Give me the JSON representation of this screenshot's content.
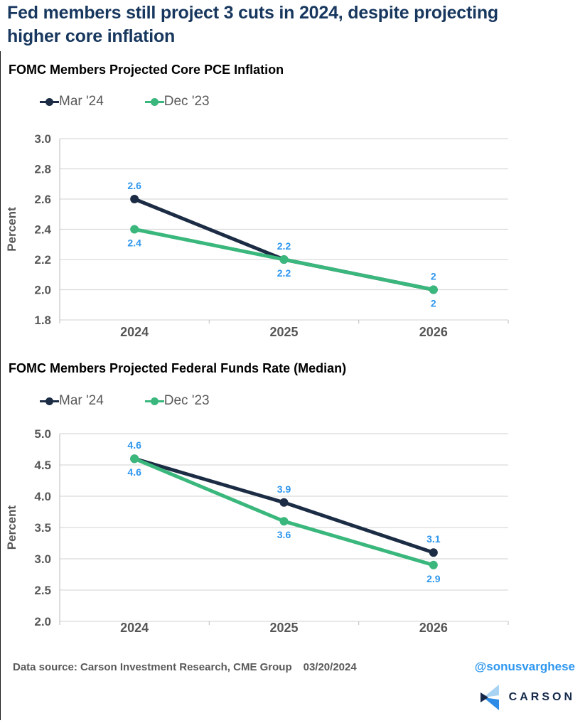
{
  "page": {
    "title": "Fed members still project 3 cuts in 2024, despite projecting higher core inflation",
    "footer": {
      "data_source": "Data source: Carson Investment Research, CME Group",
      "date": "03/20/2024",
      "handle": "@sonusvarghese",
      "brand": "CARSON"
    },
    "colors": {
      "title_navy": "#17375e",
      "series_navy": "#1b2c44",
      "series_green": "#3ab77c",
      "data_label_blue": "#2e97ef",
      "axis_gray": "#595959",
      "gridline": "#d9d9d9",
      "logo_light_blue": "#a9d3f3",
      "logo_bright_blue": "#2e8be6",
      "logo_navy": "#16294a"
    },
    "icons": {
      "legend_marker": "line-with-dot",
      "logo_mark": "carson-chevron-mark"
    }
  },
  "chart_data": [
    {
      "type": "line",
      "title": "FOMC Members Projected Core PCE Inflation",
      "ylabel": "Percent",
      "xlabel": "",
      "categories": [
        "2024",
        "2025",
        "2026"
      ],
      "series": [
        {
          "name": "Mar '24",
          "color": "#1b2c44",
          "values": [
            2.6,
            2.2,
            2.0
          ],
          "labels": [
            "2.6",
            "2.2",
            "2"
          ],
          "label_side": "above"
        },
        {
          "name": "Dec '23",
          "color": "#3ab77c",
          "values": [
            2.4,
            2.2,
            2.0
          ],
          "labels": [
            "2.4",
            "2.2",
            "2"
          ],
          "label_side": "below"
        }
      ],
      "ylim": [
        1.8,
        3.0
      ],
      "ytick_step": 0.2,
      "ytick_decimals": 1,
      "grid": true,
      "legend_position": "top",
      "data_label_color": "#2e97ef"
    },
    {
      "type": "line",
      "title": "FOMC Members Projected Federal Funds Rate (Median)",
      "ylabel": "Percent",
      "xlabel": "",
      "categories": [
        "2024",
        "2025",
        "2026"
      ],
      "series": [
        {
          "name": "Mar '24",
          "color": "#1b2c44",
          "values": [
            4.6,
            3.9,
            3.1
          ],
          "labels": [
            "4.6",
            "3.9",
            "3.1"
          ],
          "label_side": "above"
        },
        {
          "name": "Dec '23",
          "color": "#3ab77c",
          "values": [
            4.6,
            3.6,
            2.9
          ],
          "labels": [
            "4.6",
            "3.6",
            "2.9"
          ],
          "label_side": "below"
        }
      ],
      "ylim": [
        2.0,
        5.0
      ],
      "ytick_step": 0.5,
      "ytick_decimals": 1,
      "grid": true,
      "legend_position": "top",
      "data_label_color": "#2e97ef"
    }
  ]
}
